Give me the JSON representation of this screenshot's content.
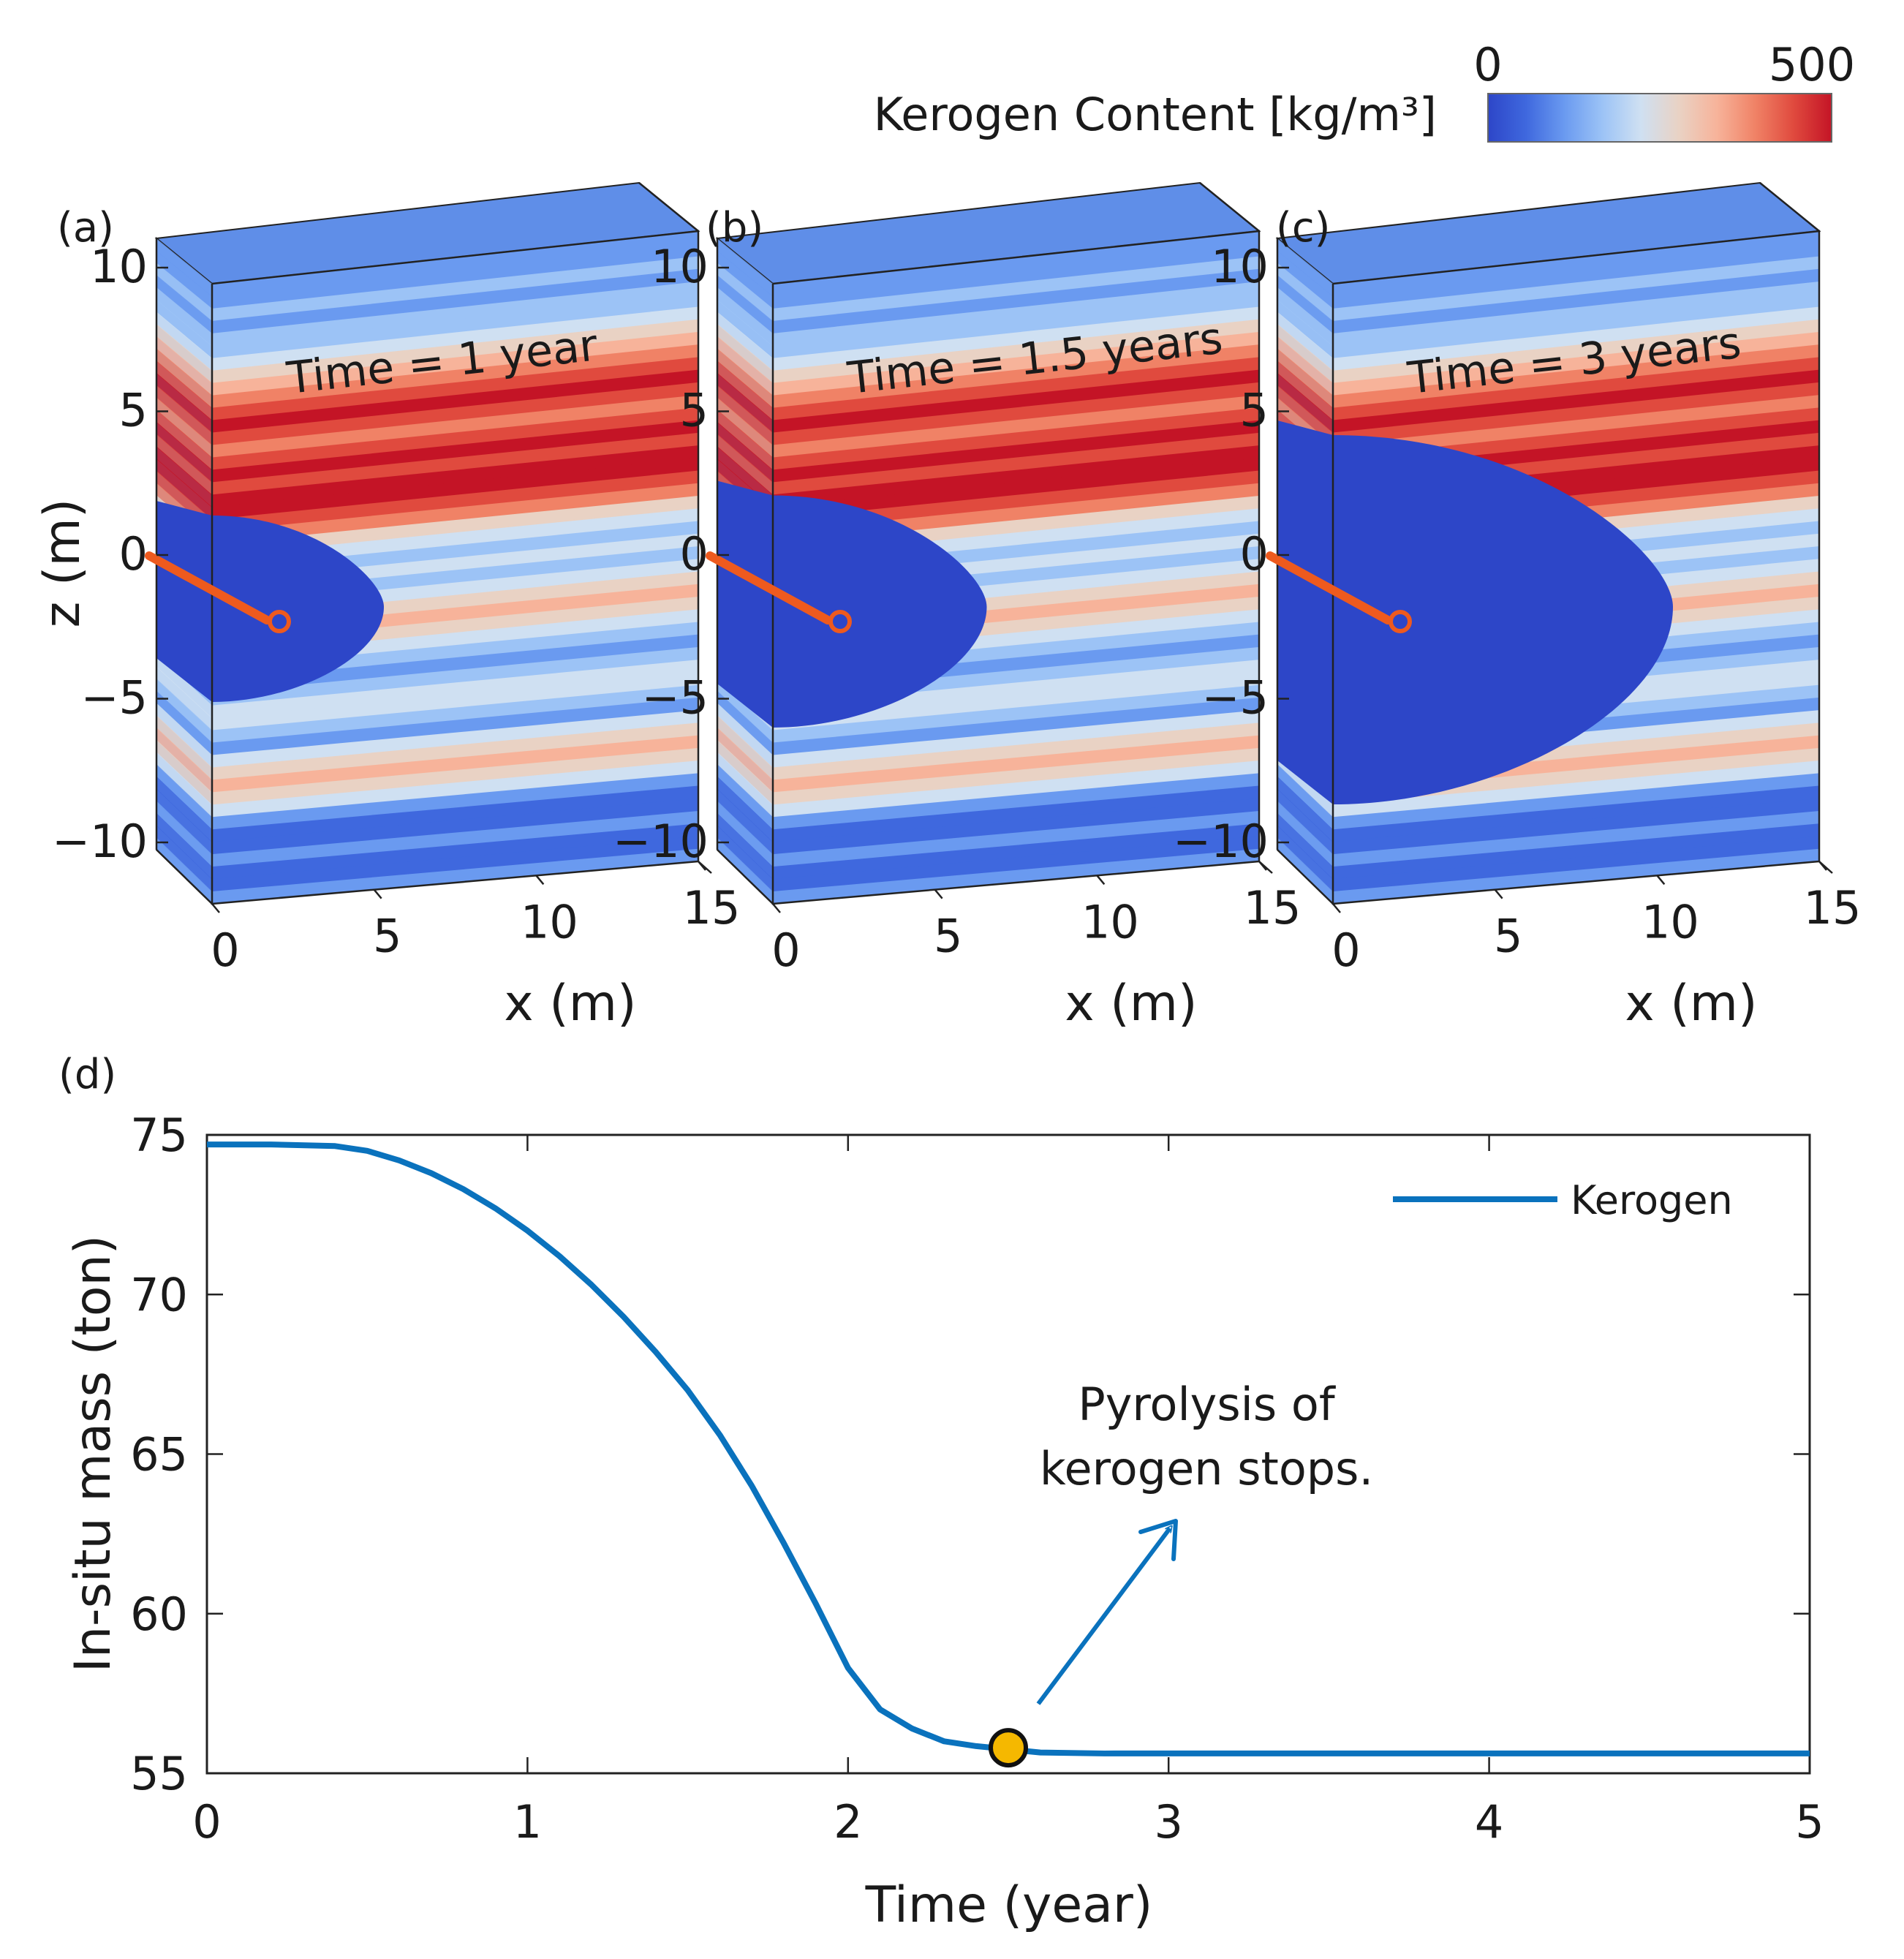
{
  "colorbar": {
    "title": "Kerogen Content [kg/m³]",
    "min_label": "0",
    "max_label": "500",
    "range": [
      0,
      500
    ],
    "colors": [
      "#2d46c8",
      "#3f68de",
      "#6a9af0",
      "#9cc3f6",
      "#cfe0f2",
      "#e9d2c4",
      "#f7b39a",
      "#f08266",
      "#e04a3e",
      "#c41426"
    ]
  },
  "panels": [
    {
      "label": "(a)",
      "time_label": "Time = 1 year",
      "time_years": 1
    },
    {
      "label": "(b)",
      "time_label": "Time = 1.5 years",
      "time_years": 1.5
    },
    {
      "label": "(c)",
      "time_label": "Time = 3 years",
      "time_years": 3
    }
  ],
  "panel_axes": {
    "z_label": "z (m)",
    "z_ticks": [
      "10",
      "5",
      "0",
      "−5",
      "−10"
    ],
    "x_label": "x (m)",
    "x_ticks": [
      "0",
      "5",
      "10",
      "15"
    ]
  },
  "panel_d_label": "(d)",
  "chart_data": {
    "type": "line",
    "title": "",
    "xlabel": "Time (year)",
    "ylabel": "In-situ mass (ton)",
    "xlim": [
      0,
      5
    ],
    "ylim": [
      55,
      75
    ],
    "xticks": [
      "0",
      "1",
      "2",
      "3",
      "4",
      "5"
    ],
    "yticks": [
      "55",
      "60",
      "65",
      "70",
      "75"
    ],
    "grid": false,
    "legend_position": "top-right",
    "series": [
      {
        "name": "Kerogen",
        "color": "#0a72bd",
        "x": [
          0,
          0.2,
          0.4,
          0.5,
          0.6,
          0.7,
          0.8,
          0.9,
          1.0,
          1.1,
          1.2,
          1.3,
          1.4,
          1.5,
          1.6,
          1.7,
          1.8,
          1.9,
          2.0,
          2.1,
          2.2,
          2.3,
          2.4,
          2.5,
          2.6,
          2.8,
          3.0,
          3.5,
          4.0,
          4.5,
          5.0
        ],
        "values": [
          74.7,
          74.7,
          74.65,
          74.5,
          74.2,
          73.8,
          73.3,
          72.7,
          72.0,
          71.2,
          70.3,
          69.3,
          68.2,
          67.0,
          65.6,
          64.0,
          62.2,
          60.3,
          58.3,
          57.0,
          56.4,
          56.0,
          55.85,
          55.75,
          55.65,
          55.62,
          55.62,
          55.62,
          55.62,
          55.62,
          55.62
        ]
      }
    ],
    "marker": {
      "x": 2.5,
      "y": 55.8,
      "color": "#f5b800"
    },
    "annotation": {
      "line1": "Pyrolysis of",
      "line2": "kerogen stops."
    }
  }
}
